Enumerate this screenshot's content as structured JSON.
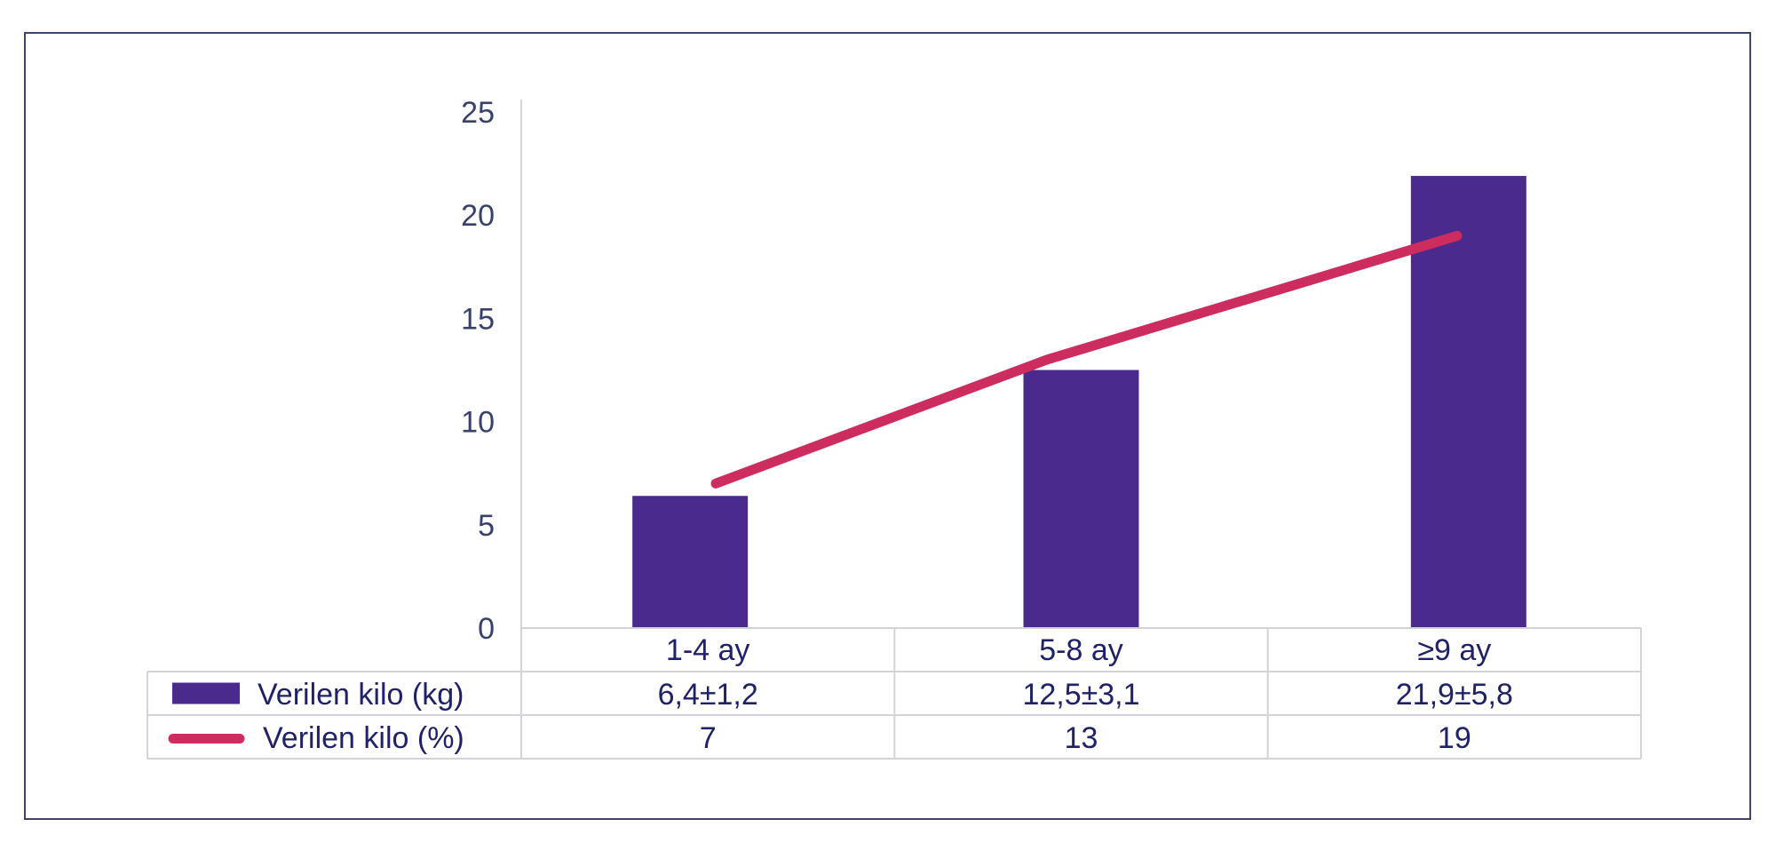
{
  "chart_data": {
    "type": "bar",
    "categories": [
      "1-4 ay",
      "5-8 ay",
      "≥9 ay"
    ],
    "ylim": [
      0,
      25
    ],
    "yticks": [
      "0",
      "5",
      "10",
      "15",
      "20",
      "25"
    ],
    "grid": false,
    "series": [
      {
        "name": "Verilen kilo (kg)",
        "type": "bar",
        "color": "#4b2a8e",
        "values": [
          6.4,
          12.5,
          21.9
        ],
        "table_values": [
          "6,4±1,2",
          "12,5±3,1",
          "21,9±5,8"
        ]
      },
      {
        "name": "Verilen kilo (%)",
        "type": "line",
        "color": "#cc2d5e",
        "values": [
          7,
          13,
          19
        ],
        "table_values": [
          "7",
          "13",
          "19"
        ]
      }
    ]
  }
}
